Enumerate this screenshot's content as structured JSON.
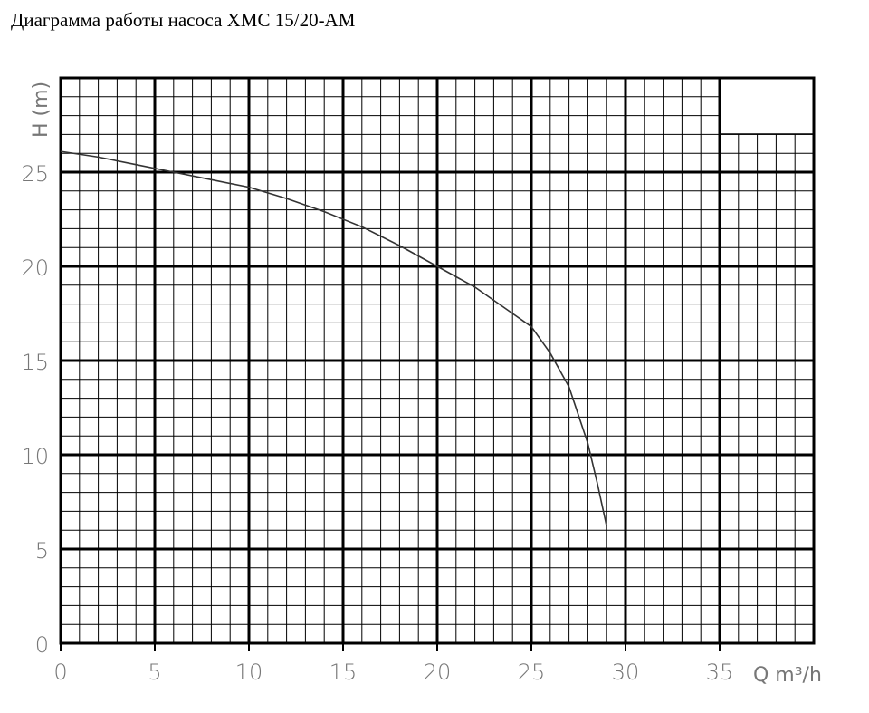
{
  "chart_data": {
    "type": "line",
    "title": "Диаграмма работы насоса XMC 15/20-AM",
    "x_label": "Q m³/h",
    "y_label": "H (m)",
    "x": [
      0,
      2,
      4,
      6,
      8,
      10,
      12,
      14,
      16,
      18,
      20,
      22,
      24,
      25,
      26,
      27,
      28,
      28.5,
      29
    ],
    "series": [
      {
        "color": "#333333",
        "values": [
          26.1,
          25.8,
          25.4,
          25.0,
          24.6,
          24.2,
          23.6,
          22.9,
          22.1,
          21.1,
          20.0,
          18.9,
          17.5,
          16.8,
          15.4,
          13.6,
          10.6,
          8.5,
          6.2
        ]
      }
    ],
    "xlim": [
      0,
      40
    ],
    "xticks": [
      0,
      5,
      10,
      15,
      20,
      25,
      30,
      35
    ],
    "ylim": [
      0,
      30
    ],
    "yticks": [
      0,
      5,
      10,
      15,
      20,
      25
    ],
    "grid": true,
    "minor_grid": true
  }
}
